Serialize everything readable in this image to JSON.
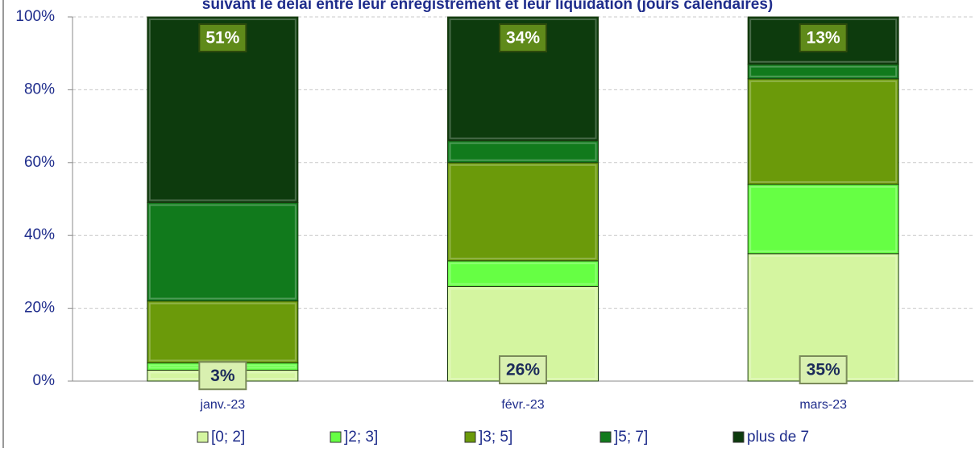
{
  "chart_data": {
    "type": "bar",
    "stacked": true,
    "title": "suivant le délai entre leur enregistrement et leur liquidation (jours calendaires)",
    "categories": [
      "janv.-23",
      "févr.-23",
      "mars-23"
    ],
    "series": [
      {
        "name": "[0; 2]",
        "color": "#d4f5a0",
        "values": [
          3,
          26,
          35
        ],
        "value_labels": [
          "3%",
          "26%",
          "35%"
        ]
      },
      {
        "name": "]2; 3]",
        "color": "#66ff44",
        "values": [
          2,
          7,
          19
        ]
      },
      {
        "name": "]3; 5]",
        "color": "#6b9a0a",
        "values": [
          17,
          27,
          29
        ]
      },
      {
        "name": "]5; 7]",
        "color": "#117a1c",
        "values": [
          27,
          6,
          4
        ]
      },
      {
        "name": "plus de 7",
        "color": "#0d3b0d",
        "values": [
          51,
          34,
          13
        ],
        "value_labels": [
          "51%",
          "34%",
          "13%"
        ]
      }
    ],
    "ylim": [
      0,
      100
    ],
    "yticks": [
      {
        "value": 0,
        "label": "0%"
      },
      {
        "value": 20,
        "label": "20%"
      },
      {
        "value": 40,
        "label": "40%"
      },
      {
        "value": 60,
        "label": "60%"
      },
      {
        "value": 80,
        "label": "80%"
      },
      {
        "value": 100,
        "label": "100%"
      }
    ],
    "grid": true,
    "legend": "bottom"
  }
}
